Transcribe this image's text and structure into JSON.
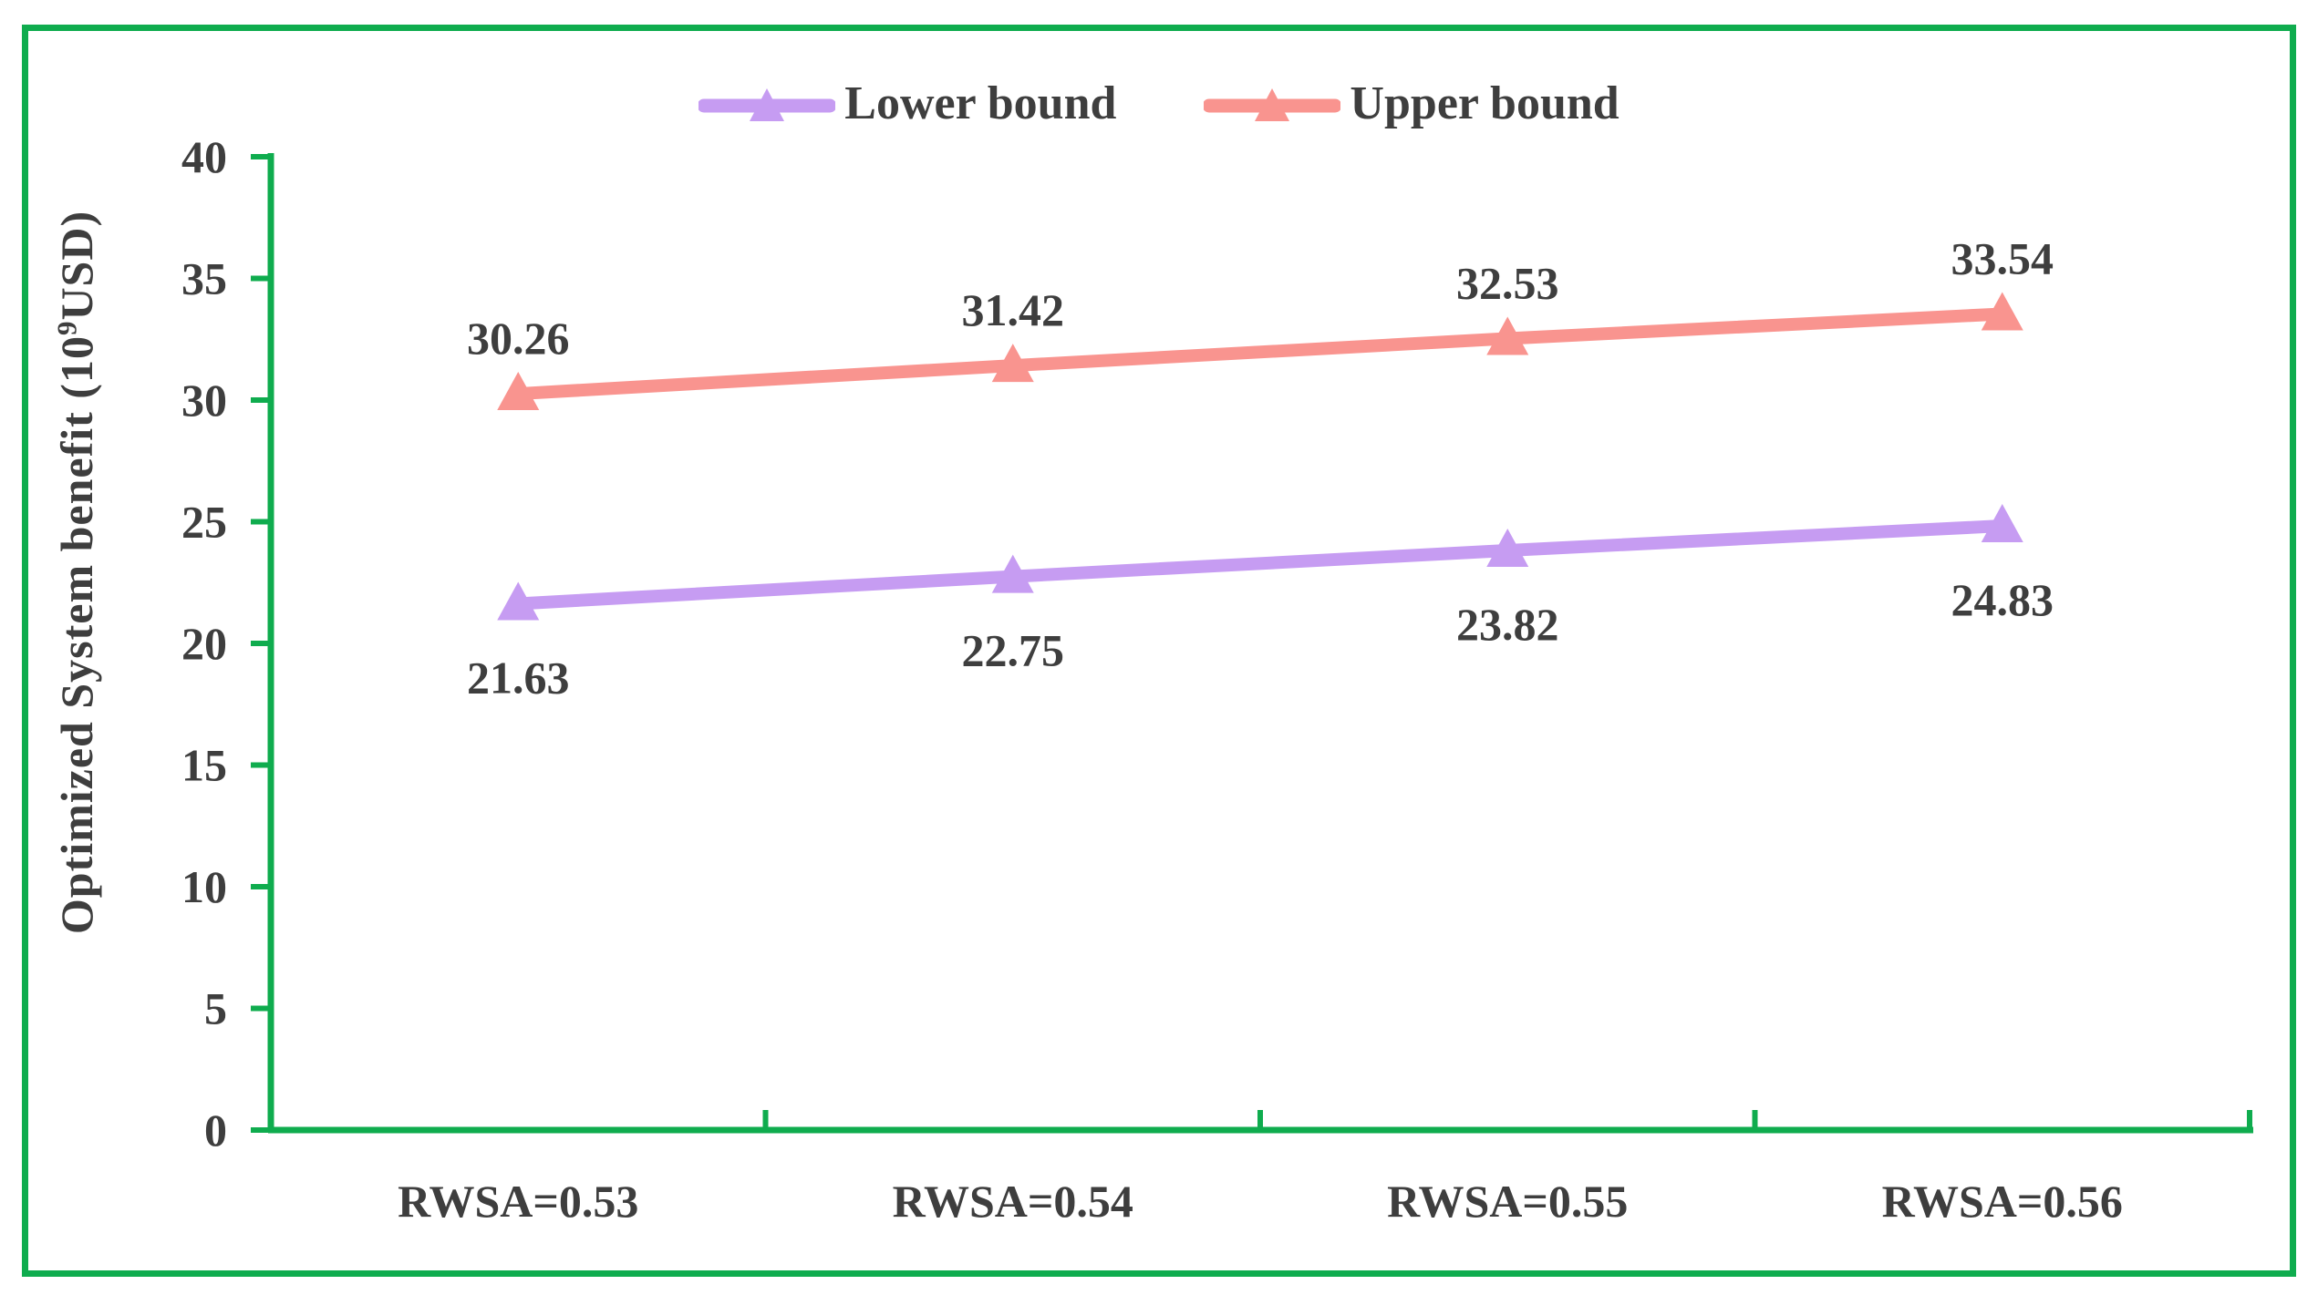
{
  "chart_data": {
    "type": "line",
    "title": "",
    "categories": [
      "RWSA=0.53",
      "RWSA=0.54",
      "RWSA=0.55",
      "RWSA=0.56"
    ],
    "series": [
      {
        "name": "Lower bound",
        "values": [
          21.63,
          22.75,
          23.82,
          24.83
        ],
        "color": "#C69CF2",
        "marker": "triangle-up",
        "label_position": "below"
      },
      {
        "name": "Upper bound",
        "values": [
          30.26,
          31.42,
          32.53,
          33.54
        ],
        "color": "#F9948F",
        "marker": "triangle-up",
        "label_position": "above"
      }
    ],
    "xlabel": "",
    "ylabel": {
      "text": "Optimized System benefit (10⁹USD)",
      "prefix": "Optimized System benefit (10",
      "sup": "9",
      "suffix": "USD)"
    },
    "ylim": [
      0,
      40
    ],
    "yticks": [
      0,
      5,
      10,
      15,
      20,
      25,
      30,
      35,
      40
    ],
    "grid": false,
    "data_labels": true,
    "label_decimals": 2,
    "legend_position": "top-center",
    "colors": {
      "axis": "#0FAC4E",
      "frame_border": "#0FAC4E",
      "text": "#3E3E3E",
      "background": "#FFFFFF"
    }
  }
}
